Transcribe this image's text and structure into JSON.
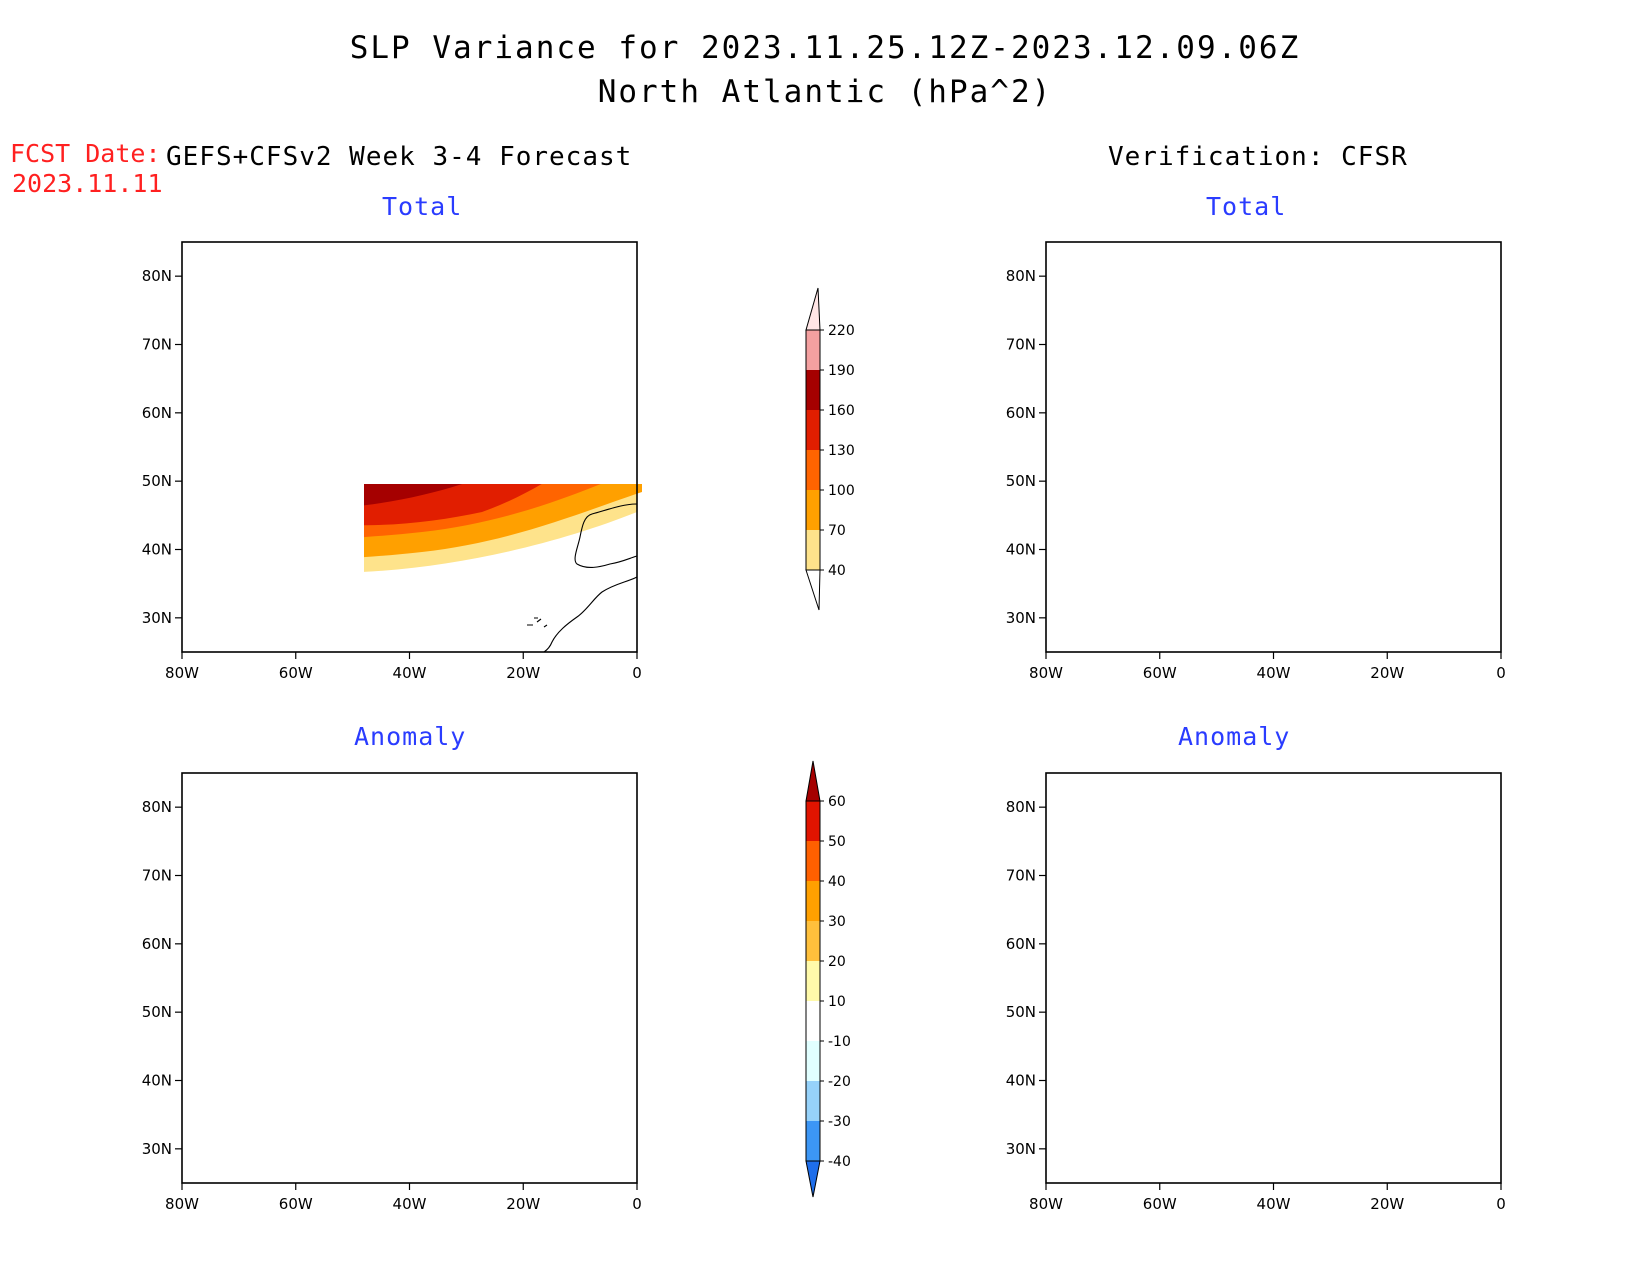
{
  "title": {
    "line1": "SLP Variance for 2023.11.25.12Z-2023.12.09.06Z",
    "line2": "North Atlantic (hPa^2)"
  },
  "fcst": {
    "label": "FCST Date:",
    "date": "2023.11.11"
  },
  "left_header": "GEFS+CFSv2 Week 3-4 Forecast",
  "right_header": "Verification: CFSR",
  "panels": {
    "fc_total": {
      "subtitle": "Total"
    },
    "vf_total": {
      "subtitle": "Total"
    },
    "fc_anom": {
      "subtitle": "Anomaly"
    },
    "vf_anom": {
      "subtitle": "Anomaly"
    }
  },
  "axes": {
    "lon_labels": [
      "80W",
      "60W",
      "40W",
      "20W",
      "0"
    ],
    "lat_labels": [
      "80N",
      "70N",
      "60N",
      "50N",
      "40N",
      "30N"
    ],
    "lon_range": [
      -80,
      0
    ],
    "lat_range": [
      25,
      85
    ]
  },
  "colorbars": {
    "total": {
      "levels": [
        "40",
        "70",
        "100",
        "130",
        "160",
        "190",
        "220"
      ],
      "colors": [
        "#fee38b",
        "#ffa000",
        "#ff6400",
        "#e11e00",
        "#a50000",
        "#f4a0a0",
        "#ffe6e6"
      ]
    },
    "anomaly": {
      "levels": [
        "-40",
        "-30",
        "-20",
        "-10",
        "10",
        "20",
        "30",
        "40",
        "50",
        "60"
      ],
      "colors": [
        "#1e6eeb",
        "#3c96f5",
        "#96d2fa",
        "#e1ffff",
        "#ffffff",
        "#fffaaa",
        "#ffc03c",
        "#ffa000",
        "#ff6000",
        "#e11400",
        "#a50000"
      ]
    }
  }
}
